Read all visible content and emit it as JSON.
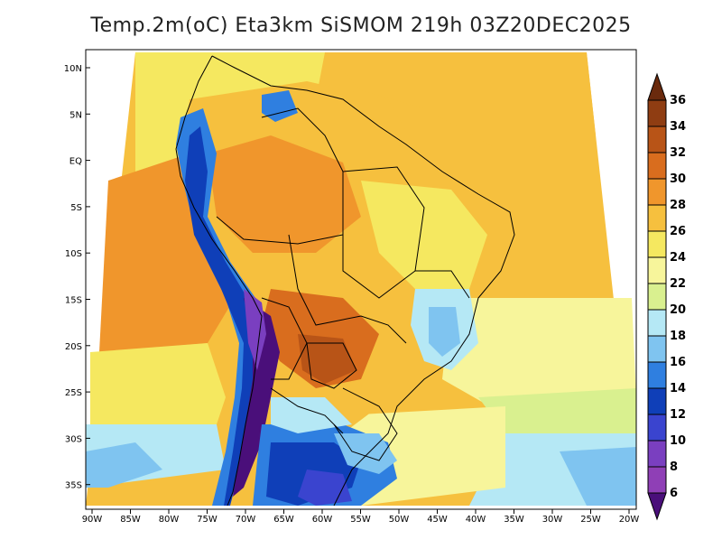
{
  "title": "Temp.2m(oC) Eta3km SiSMOM 219h 03Z20DEC2025",
  "map": {
    "lat_labels": [
      "10N",
      "5N",
      "EQ",
      "5S",
      "10S",
      "15S",
      "20S",
      "25S",
      "30S",
      "35S"
    ],
    "lon_labels": [
      "90W",
      "85W",
      "80W",
      "75W",
      "70W",
      "65W",
      "60W",
      "55W",
      "50W",
      "45W",
      "40W",
      "35W",
      "30W",
      "25W",
      "20W"
    ]
  },
  "colorbar": {
    "labels": [
      "36",
      "34",
      "32",
      "30",
      "28",
      "26",
      "24",
      "22",
      "20",
      "18",
      "16",
      "14",
      "12",
      "10",
      "8",
      "6"
    ],
    "bins": [
      {
        "color": "#6a2a0d"
      },
      {
        "color": "#8f3d12"
      },
      {
        "color": "#b85417"
      },
      {
        "color": "#d96d1e"
      },
      {
        "color": "#f0962c"
      },
      {
        "color": "#f6c03e"
      },
      {
        "color": "#f5e860"
      },
      {
        "color": "#f7f59b"
      },
      {
        "color": "#d9f08f"
      },
      {
        "color": "#b5e8f5"
      },
      {
        "color": "#7fc4f0"
      },
      {
        "color": "#2f7fe0"
      },
      {
        "color": "#0f3fb8"
      },
      {
        "color": "#3a44cf"
      },
      {
        "color": "#7a3fc0"
      },
      {
        "color": "#8f3fb6"
      },
      {
        "color": "#4a0f7a"
      }
    ]
  }
}
